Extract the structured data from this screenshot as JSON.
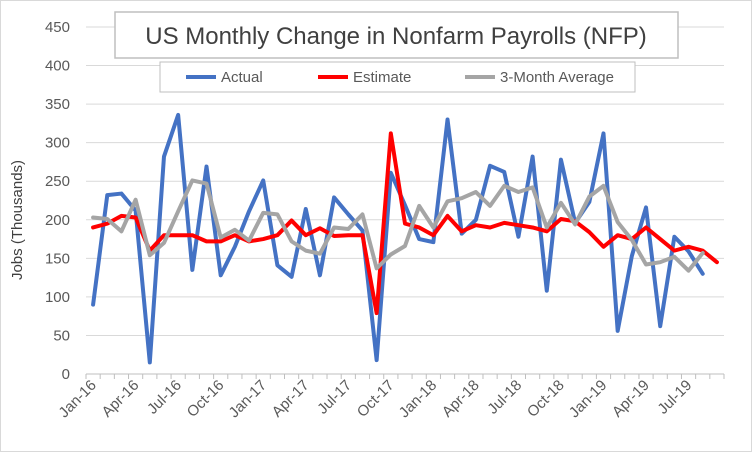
{
  "chart_data": {
    "type": "line",
    "title": "US Monthly Change in Nonfarm Payrolls (NFP)",
    "xlabel": "",
    "ylabel": "Jobs (Thousands)",
    "ylim": [
      0,
      450
    ],
    "yticks": [
      0,
      50,
      100,
      150,
      200,
      250,
      300,
      350,
      400,
      450
    ],
    "grid": "horizontal",
    "legend_position": "top",
    "x": [
      "Jan-16",
      "Feb-16",
      "Mar-16",
      "Apr-16",
      "May-16",
      "Jun-16",
      "Jul-16",
      "Aug-16",
      "Sep-16",
      "Oct-16",
      "Nov-16",
      "Dec-16",
      "Jan-17",
      "Feb-17",
      "Mar-17",
      "Apr-17",
      "May-17",
      "Jun-17",
      "Jul-17",
      "Aug-17",
      "Sep-17",
      "Oct-17",
      "Nov-17",
      "Dec-17",
      "Jan-18",
      "Feb-18",
      "Mar-18",
      "Apr-18",
      "May-18",
      "Jun-18",
      "Jul-18",
      "Aug-18",
      "Sep-18",
      "Oct-18",
      "Nov-18",
      "Dec-18",
      "Jan-19",
      "Feb-19",
      "Mar-19",
      "Apr-19",
      "May-19",
      "Jun-19",
      "Jul-19",
      "Aug-19",
      "Sep-19"
    ],
    "x_tick_labels": [
      "Jan-16",
      "Apr-16",
      "Jul-16",
      "Oct-16",
      "Jan-17",
      "Apr-17",
      "Jul-17",
      "Oct-17",
      "Jan-18",
      "Apr-18",
      "Jul-18",
      "Oct-18",
      "Jan-19",
      "Apr-19",
      "Jul-19"
    ],
    "series": [
      {
        "name": "Actual",
        "color": "#4472C4",
        "values": [
          90,
          232,
          234,
          212,
          15,
          282,
          336,
          135,
          269,
          128,
          165,
          211,
          251,
          141,
          126,
          214,
          128,
          229,
          207,
          186,
          18,
          261,
          219,
          175,
          171,
          330,
          182,
          200,
          270,
          262,
          178,
          282,
          108,
          278,
          196,
          223,
          312,
          56,
          153,
          216,
          62,
          178,
          159,
          130,
          null
        ]
      },
      {
        "name": "Estimate",
        "color": "#FF0000",
        "values": [
          190,
          195,
          205,
          203,
          160,
          180,
          180,
          180,
          172,
          172,
          180,
          172,
          175,
          180,
          199,
          180,
          189,
          179,
          180,
          180,
          79,
          312,
          195,
          190,
          180,
          205,
          185,
          193,
          190,
          196,
          193,
          190,
          185,
          201,
          198,
          184,
          165,
          180,
          175,
          190,
          175,
          160,
          165,
          160,
          145
        ]
      },
      {
        "name": "3-Month Average",
        "color": "#A5A5A5",
        "values": [
          203,
          201,
          185,
          226,
          154,
          170,
          211,
          251,
          247,
          177,
          187,
          173,
          209,
          207,
          172,
          160,
          156,
          190,
          188,
          207,
          137,
          155,
          166,
          218,
          190,
          224,
          228,
          236,
          218,
          244,
          236,
          242,
          190,
          222,
          194,
          230,
          244,
          197,
          174,
          142,
          145,
          152,
          134,
          157,
          null
        ]
      }
    ]
  }
}
